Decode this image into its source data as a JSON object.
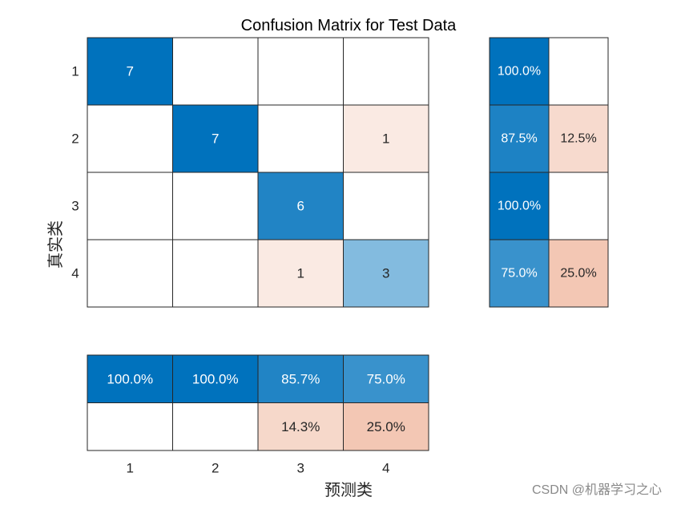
{
  "chart_data": {
    "type": "heatmap",
    "title": "Confusion Matrix for Test Data",
    "xlabel": "预测类",
    "ylabel": "真实类",
    "classes": [
      "1",
      "2",
      "3",
      "4"
    ],
    "matrix": [
      [
        7,
        0,
        0,
        0
      ],
      [
        0,
        7,
        0,
        1
      ],
      [
        0,
        0,
        6,
        0
      ],
      [
        0,
        0,
        1,
        3
      ]
    ],
    "row_summary": [
      [
        "100.0%",
        ""
      ],
      [
        "87.5%",
        "12.5%"
      ],
      [
        "100.0%",
        ""
      ],
      [
        "75.0%",
        "25.0%"
      ]
    ],
    "column_summary": [
      [
        "100.0%",
        "100.0%",
        "85.7%",
        "75.0%"
      ],
      [
        "",
        "",
        "14.3%",
        "25.0%"
      ]
    ],
    "colors": {
      "correct_high": "#0072BD",
      "correct_low": "#FFFFFF",
      "error_high": "#D95319",
      "error_low": "#FFFFFF"
    }
  },
  "watermark": "CSDN @机器学习之心"
}
